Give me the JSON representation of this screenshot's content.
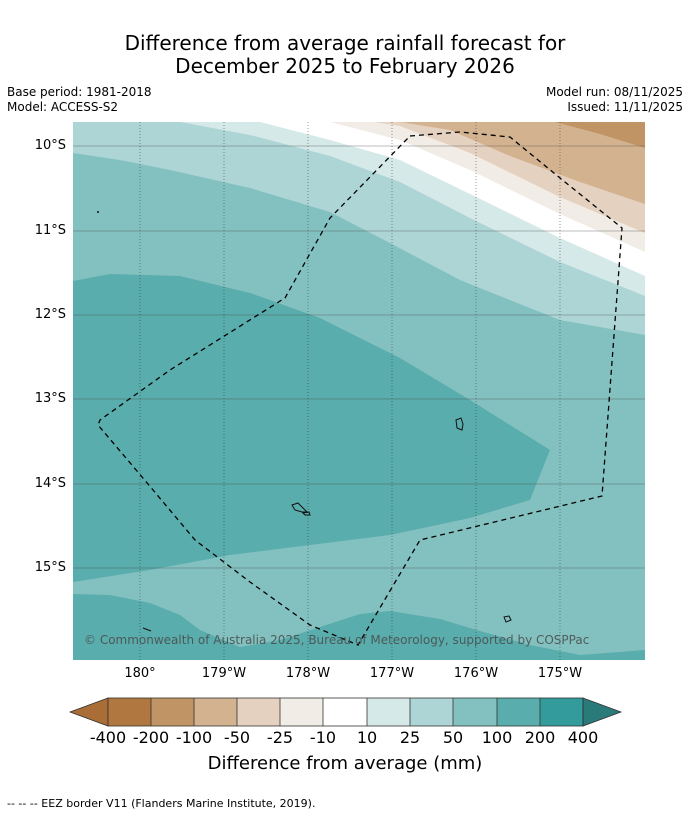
{
  "header": {
    "title_line1": "Difference from average rainfall forecast for",
    "title_line2": "December 2025 to February 2026",
    "base_period": "Base period: 1981-2018",
    "model": "Model: ACCESS-S2",
    "model_run": "Model run: 08/11/2025",
    "issued": "Issued: 11/11/2025"
  },
  "map": {
    "latitude_labels": [
      "10°S",
      "11°S",
      "12°S",
      "13°S",
      "14°S",
      "15°S"
    ],
    "longitude_labels": [
      "180°",
      "179°W",
      "178°W",
      "177°W",
      "176°W",
      "175°W"
    ],
    "copyright": "© Commonwealth of Australia 2025, Bureau of Meteorology, supported by COSPPac",
    "eez_border": "dashed",
    "palette": {
      "dry_400": "#a96d35",
      "dry_200": "#c19466",
      "dry_100": "#d3b290",
      "dry_50": "#e4d1c0",
      "dry_25": "#f1ede6",
      "neutral": "#ffffff",
      "wet_10": "#d4e9e8",
      "wet_25": "#add5d5",
      "wet_50": "#83c1c0",
      "wet_100": "#5aadad",
      "wet_200": "#339b9b",
      "wet_400": "#2a7a7a"
    }
  },
  "colorbar": {
    "labels": [
      "-400",
      "-200",
      "-100",
      "-50",
      "-25",
      "-10",
      "10",
      "25",
      "50",
      "100",
      "200",
      "400"
    ],
    "title": "Difference from average (mm)"
  },
  "footer": {
    "legend": "-- -- -- EEZ border V11 (Flanders Marine Institute, 2019)."
  }
}
